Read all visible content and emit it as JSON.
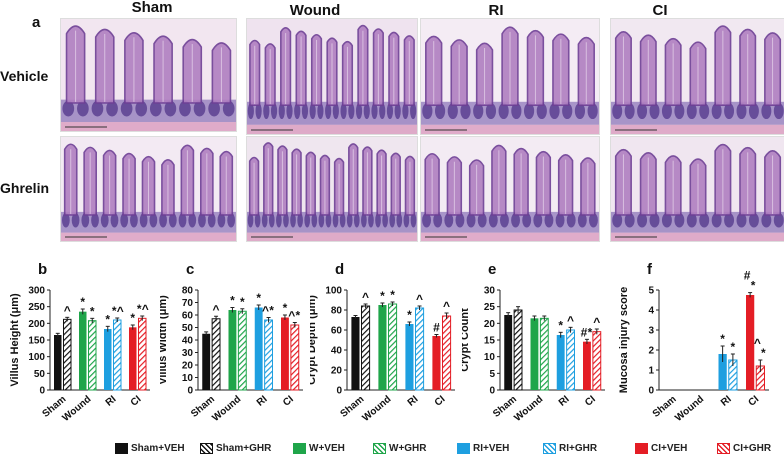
{
  "figure": {
    "panel_a_label": "a",
    "columns": [
      "Sham",
      "Wound",
      "RI",
      "CI"
    ],
    "rows": [
      "Vehicle",
      "Ghrelin"
    ]
  },
  "legend": [
    {
      "label": "Sham+VEH",
      "color": "#111111",
      "hatched": false
    },
    {
      "label": "Sham+GHR",
      "color": "#111111",
      "hatched": true
    },
    {
      "label": "W+VEH",
      "color": "#1fa54a",
      "hatched": false
    },
    {
      "label": "W+GHR",
      "color": "#1fa54a",
      "hatched": true
    },
    {
      "label": "RI+VEH",
      "color": "#1e9fe0",
      "hatched": false
    },
    {
      "label": "RI+GHR",
      "color": "#1e9fe0",
      "hatched": true
    },
    {
      "label": "CI+VEH",
      "color": "#e41d25",
      "hatched": false
    },
    {
      "label": "CI+GHR",
      "color": "#e41d25",
      "hatched": true
    }
  ],
  "chart_data": [
    {
      "panel": "b",
      "type": "bar",
      "ylabel": "Villus Height (μm)",
      "ylim": [
        0,
        300
      ],
      "yticks": [
        0,
        50,
        100,
        150,
        200,
        250,
        300
      ],
      "categories": [
        "Sham",
        "Wound",
        "RI",
        "CI"
      ],
      "series": [
        {
          "name": "VEH",
          "values": [
            165,
            235,
            183,
            188
          ],
          "err": [
            5,
            8,
            8,
            7
          ]
        },
        {
          "name": "GHR",
          "values": [
            212,
            208,
            210,
            215
          ],
          "err": [
            6,
            7,
            6,
            7
          ]
        }
      ],
      "annotations": [
        [
          "",
          "^"
        ],
        [
          "*",
          "*"
        ],
        [
          "*",
          "*^"
        ],
        [
          "*",
          "*^"
        ]
      ]
    },
    {
      "panel": "c",
      "type": "bar",
      "ylabel": "Villus Width (μm)",
      "ylim": [
        0,
        80
      ],
      "yticks": [
        0,
        10,
        20,
        30,
        40,
        50,
        60,
        70,
        80
      ],
      "categories": [
        "Sham",
        "Wound",
        "RI",
        "CI"
      ],
      "series": [
        {
          "name": "VEH",
          "values": [
            45,
            64,
            66,
            58
          ],
          "err": [
            1.5,
            2,
            2,
            2
          ]
        },
        {
          "name": "GHR",
          "values": [
            57,
            63,
            56,
            52
          ],
          "err": [
            2,
            2,
            2,
            2
          ]
        }
      ],
      "annotations": [
        [
          "",
          "^"
        ],
        [
          "*",
          "*"
        ],
        [
          "*",
          "^*"
        ],
        [
          "*",
          "^*"
        ]
      ]
    },
    {
      "panel": "d",
      "type": "bar",
      "ylabel": "Crypt Depth (μm)",
      "ylim": [
        0,
        100
      ],
      "yticks": [
        0,
        20,
        40,
        60,
        80,
        100
      ],
      "categories": [
        "Sham",
        "Wound",
        "RI",
        "CI"
      ],
      "series": [
        {
          "name": "VEH",
          "values": [
            73,
            85,
            66,
            54
          ],
          "err": [
            1.5,
            2,
            2,
            1.5
          ]
        },
        {
          "name": "GHR",
          "values": [
            84,
            86,
            82,
            74
          ],
          "err": [
            2,
            2,
            2,
            3
          ]
        }
      ],
      "annotations": [
        [
          "",
          "^"
        ],
        [
          "*",
          "*"
        ],
        [
          "*",
          "^"
        ],
        [
          "#",
          "^"
        ]
      ]
    },
    {
      "panel": "e",
      "type": "bar",
      "ylabel": "Crypt Count",
      "ylim": [
        0,
        30
      ],
      "yticks": [
        0,
        5,
        10,
        15,
        20,
        25,
        30
      ],
      "categories": [
        "Sham",
        "Wound",
        "RI",
        "CI"
      ],
      "series": [
        {
          "name": "VEH",
          "values": [
            22.5,
            21.5,
            16.5,
            14.5
          ],
          "err": [
            0.7,
            0.7,
            0.8,
            0.7
          ]
        },
        {
          "name": "GHR",
          "values": [
            24,
            21.5,
            18,
            17.5
          ],
          "err": [
            1,
            0.7,
            0.8,
            0.8
          ]
        }
      ],
      "annotations": [
        [
          "",
          ""
        ],
        [
          "",
          ""
        ],
        [
          "*",
          "^"
        ],
        [
          "#*",
          "^"
        ]
      ]
    },
    {
      "panel": "f",
      "type": "bar",
      "ylabel": "Mucosa injury score",
      "ylim": [
        0,
        5
      ],
      "yticks": [
        0,
        1,
        2,
        3,
        4,
        5
      ],
      "categories": [
        "Sham",
        "Wound",
        "RI",
        "CI"
      ],
      "series": [
        {
          "name": "VEH",
          "values": [
            0,
            0,
            1.8,
            4.75
          ],
          "err": [
            0,
            0,
            0.4,
            0.12
          ]
        },
        {
          "name": "GHR",
          "values": [
            0,
            0,
            1.5,
            1.2
          ],
          "err": [
            0,
            0,
            0.3,
            0.3
          ]
        }
      ],
      "annotations": [
        [
          "",
          ""
        ],
        [
          "",
          ""
        ],
        [
          "*",
          "*"
        ],
        [
          "#*",
          "^*"
        ]
      ]
    }
  ]
}
